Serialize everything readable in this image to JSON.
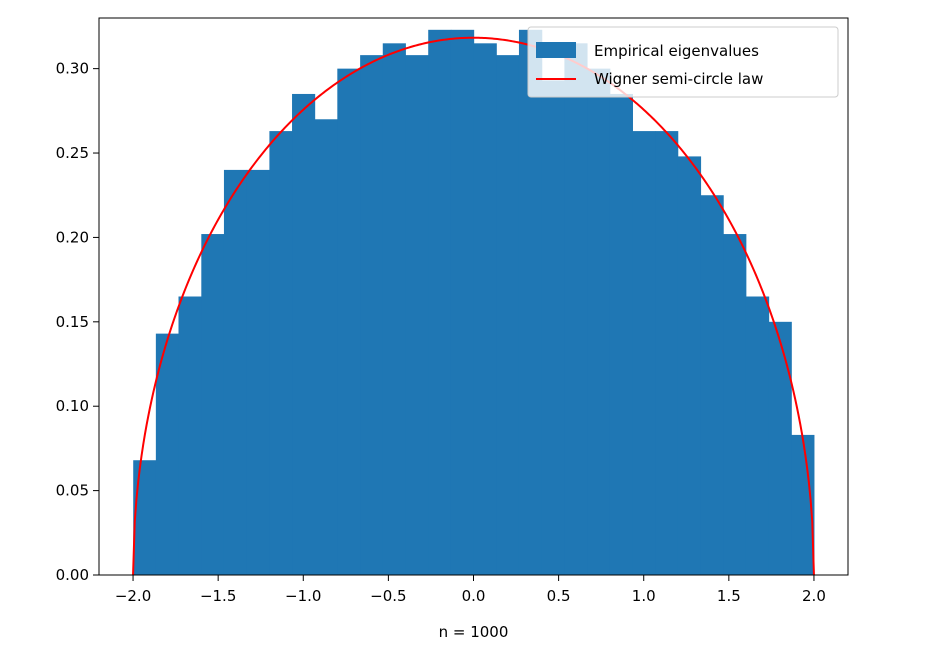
{
  "chart_data": {
    "type": "bar",
    "xlabel": "n = 1000",
    "ylabel": "",
    "xlim": [
      -2.2,
      2.2
    ],
    "ylim": [
      0,
      0.33
    ],
    "xticks": [
      "−2.0",
      "−1.5",
      "−1.0",
      "−0.5",
      "0.0",
      "0.5",
      "1.0",
      "1.5",
      "2.0"
    ],
    "xtick_values": [
      -2.0,
      -1.5,
      -1.0,
      -0.5,
      0.0,
      0.5,
      1.0,
      1.5,
      2.0
    ],
    "yticks": [
      "0.00",
      "0.05",
      "0.10",
      "0.15",
      "0.20",
      "0.25",
      "0.30"
    ],
    "ytick_values": [
      0.0,
      0.05,
      0.1,
      0.15,
      0.2,
      0.25,
      0.3
    ],
    "grid": false,
    "legend_position": "top-right",
    "series": [
      {
        "name": "Empirical eigenvalues",
        "kind": "histogram",
        "color": "#1f77b4",
        "bin_edges": [
          -1.999,
          -1.866,
          -1.733,
          -1.599,
          -1.466,
          -1.333,
          -1.199,
          -1.066,
          -0.933,
          -0.8,
          -0.666,
          -0.533,
          -0.4,
          -0.266,
          -0.133,
          0.001,
          0.134,
          0.267,
          0.401,
          0.534,
          0.667,
          0.801,
          0.934,
          1.067,
          1.2,
          1.334,
          1.467,
          1.6,
          1.734,
          1.867,
          2.0
        ],
        "values": [
          0.068,
          0.143,
          0.165,
          0.202,
          0.24,
          0.24,
          0.263,
          0.285,
          0.27,
          0.3,
          0.308,
          0.315,
          0.308,
          0.323,
          0.323,
          0.315,
          0.308,
          0.323,
          0.293,
          0.315,
          0.3,
          0.285,
          0.263,
          0.263,
          0.248,
          0.225,
          0.202,
          0.165,
          0.15,
          0.083
        ]
      },
      {
        "name": "Wigner semi-circle law",
        "kind": "line",
        "color": "#ff0000",
        "formula": "sqrt(4 - x^2) / (2*pi)",
        "domain": [
          -2.0,
          2.0
        ]
      }
    ]
  }
}
